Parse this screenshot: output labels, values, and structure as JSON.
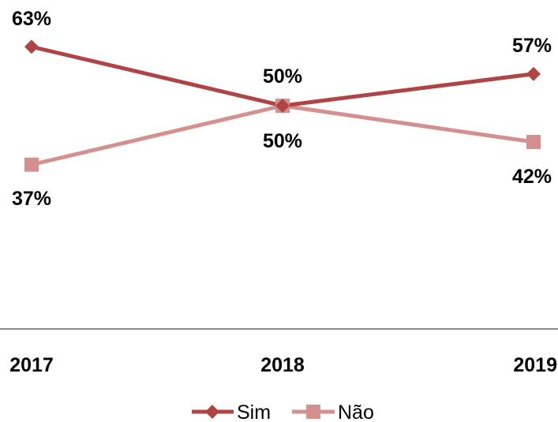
{
  "chart_data": {
    "type": "line",
    "categories": [
      "2017",
      "2018",
      "2019"
    ],
    "series": [
      {
        "name": "Sim",
        "values": [
          63,
          50,
          57
        ],
        "value_labels": [
          "63%",
          "50%",
          "57%"
        ],
        "color": "#b04444",
        "marker": "diamond"
      },
      {
        "name": "Não",
        "values": [
          37,
          50,
          42
        ],
        "value_labels": [
          "37%",
          "50%",
          "42%"
        ],
        "color": "#d48f8f",
        "marker": "square"
      }
    ],
    "ylim": [
      0,
      75
    ],
    "grid": false,
    "legend_position": "bottom",
    "axis_color": "#8c8c8c"
  }
}
